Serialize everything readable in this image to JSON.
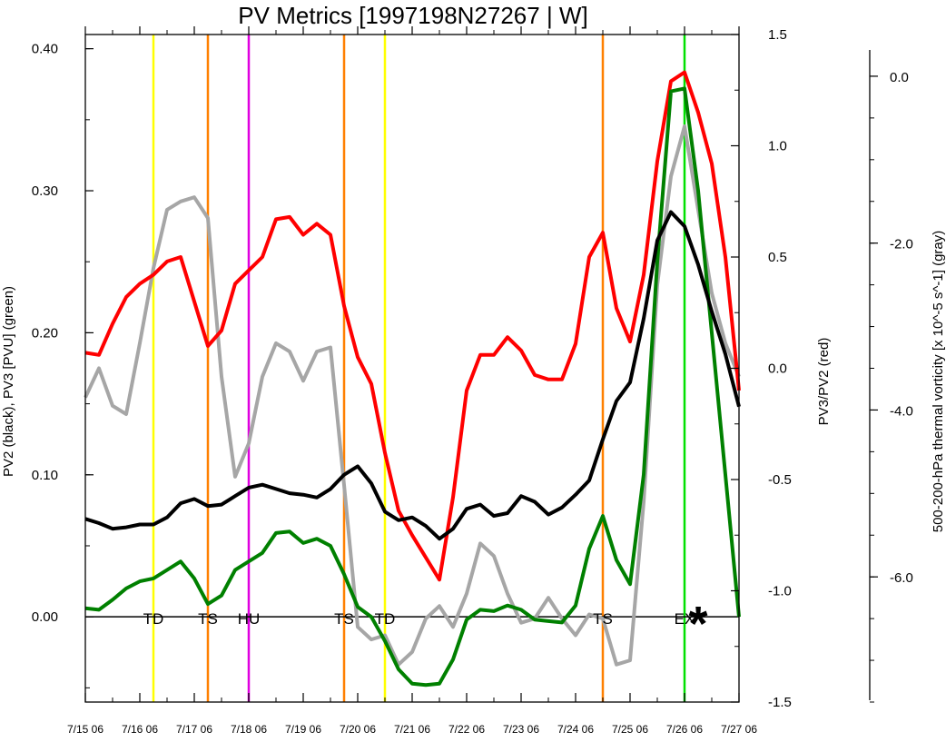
{
  "chart_data": {
    "type": "line",
    "title": "PV Metrics [1997198N27267 | W]",
    "ylabel_left": "PV2 (black), PV3 [PVU] (green)",
    "ylabel_right": "PV3/PV2 (red)",
    "ylabel_far_right": "500-200-hPa thermal vorticity [x 10^-5 s^-1] (gray)",
    "x_start": "1997-07-15 06",
    "x_step_hours": 6,
    "x_range_days": [
      0,
      12
    ],
    "x_ticks": [
      "7/15 06",
      "7/16 06",
      "7/17 06",
      "7/18 06",
      "7/19 06",
      "7/20 06",
      "7/21 06",
      "7/22 06",
      "7/23 06",
      "7/24 06",
      "7/25 06",
      "7/26 06",
      "7/27 06"
    ],
    "ylim_left": [
      -0.06,
      0.41
    ],
    "ylim_right": [
      -1.5,
      1.5
    ],
    "ylim_far_right": [
      -7.5,
      0.5
    ],
    "yticks_left": [
      {
        "v": 0.0,
        "label": "0.00"
      },
      {
        "v": 0.1,
        "label": "0.10"
      },
      {
        "v": 0.2,
        "label": "0.20"
      },
      {
        "v": 0.3,
        "label": "0.30"
      },
      {
        "v": 0.4,
        "label": "0.40"
      }
    ],
    "yticks_right": [
      {
        "v": -1.5,
        "label": "-1.5"
      },
      {
        "v": -1.0,
        "label": "-1.0"
      },
      {
        "v": -0.5,
        "label": "-0.5"
      },
      {
        "v": 0.0,
        "label": "0.0"
      },
      {
        "v": 0.5,
        "label": "0.5"
      },
      {
        "v": 1.0,
        "label": "1.0"
      },
      {
        "v": 1.5,
        "label": "1.5"
      }
    ],
    "yticks_far_right": [
      {
        "v": 0.0,
        "label": "0.0"
      },
      {
        "v": -2.0,
        "label": "-2.0"
      },
      {
        "v": -4.0,
        "label": "-4.0"
      },
      {
        "v": -6.0,
        "label": "-6.0"
      }
    ],
    "series": [
      {
        "name": "PV2",
        "color": "#000000",
        "axis": "left",
        "values": [
          0.069,
          0.066,
          0.062,
          0.063,
          0.065,
          0.065,
          0.07,
          0.08,
          0.083,
          0.078,
          0.079,
          0.085,
          0.091,
          0.093,
          0.09,
          0.087,
          0.086,
          0.084,
          0.09,
          0.1,
          0.106,
          0.094,
          0.074,
          0.068,
          0.07,
          0.064,
          0.055,
          0.062,
          0.076,
          0.079,
          0.071,
          0.073,
          0.085,
          0.081,
          0.072,
          0.077,
          0.086,
          0.096,
          0.125,
          0.152,
          0.165,
          0.21,
          0.265,
          0.285,
          0.275,
          0.248,
          0.215,
          0.185,
          0.148
        ]
      },
      {
        "name": "PV3",
        "color": "#008000",
        "axis": "left",
        "values": [
          0.006,
          0.005,
          0.012,
          0.02,
          0.025,
          0.027,
          0.033,
          0.039,
          0.027,
          0.009,
          0.015,
          0.033,
          0.039,
          0.045,
          0.059,
          0.06,
          0.052,
          0.055,
          0.05,
          0.03,
          0.007,
          0.0,
          -0.017,
          -0.037,
          -0.047,
          -0.048,
          -0.047,
          -0.03,
          -0.002,
          0.005,
          0.004,
          0.008,
          0.005,
          -0.002,
          -0.003,
          -0.004,
          0.008,
          0.048,
          0.071,
          0.04,
          0.023,
          0.1,
          0.25,
          0.37,
          0.372,
          0.3,
          0.2,
          0.1,
          0.0
        ]
      },
      {
        "name": "PV3/PV2",
        "color": "#ff0000",
        "axis": "right",
        "values": [
          0.07,
          0.06,
          0.2,
          0.32,
          0.38,
          0.42,
          0.48,
          0.5,
          0.3,
          0.1,
          0.17,
          0.38,
          0.44,
          0.5,
          0.67,
          0.68,
          0.6,
          0.65,
          0.6,
          0.28,
          0.05,
          -0.07,
          -0.38,
          -0.64,
          -0.75,
          -0.85,
          -0.95,
          -0.58,
          -0.1,
          0.06,
          0.06,
          0.14,
          0.08,
          -0.03,
          -0.05,
          -0.05,
          0.11,
          0.5,
          0.61,
          0.27,
          0.12,
          0.42,
          0.93,
          1.29,
          1.33,
          1.15,
          0.92,
          0.5,
          -0.1
        ]
      },
      {
        "name": "Thermal vorticity",
        "color": "#a6a6a6",
        "axis": "far_right",
        "values": [
          -3.85,
          -3.5,
          -3.95,
          -4.05,
          -3.2,
          -2.3,
          -1.6,
          -1.5,
          -1.45,
          -1.7,
          -3.6,
          -4.8,
          -4.4,
          -3.6,
          -3.2,
          -3.3,
          -3.65,
          -3.3,
          -3.25,
          -4.9,
          -6.6,
          -6.75,
          -6.7,
          -7.05,
          -6.9,
          -6.5,
          -6.35,
          -6.6,
          -6.2,
          -5.6,
          -5.75,
          -6.2,
          -6.55,
          -6.5,
          -6.25,
          -6.5,
          -6.7,
          -6.45,
          -6.5,
          -7.05,
          -7.0,
          -5.1,
          -2.5,
          -1.2,
          -0.6,
          -1.6,
          -2.6,
          -3.2,
          -3.6
        ]
      }
    ],
    "vertical_markers": [
      {
        "day": 1.25,
        "color": "#ffff00",
        "label": "TD"
      },
      {
        "day": 2.25,
        "color": "#ff8000",
        "label": "TS"
      },
      {
        "day": 3.0,
        "color": "#e000e0",
        "label": "HU"
      },
      {
        "day": 4.75,
        "color": "#ff8000",
        "label": "TS"
      },
      {
        "day": 5.5,
        "color": "#ffff00",
        "label": "TD"
      },
      {
        "day": 9.5,
        "color": "#ff8000",
        "label": "TS"
      },
      {
        "day": 11.0,
        "color": "#00e000",
        "label": "EX"
      }
    ],
    "asterisk": {
      "day": 11.25,
      "value": 0.0,
      "label": "*"
    },
    "grid": false
  }
}
